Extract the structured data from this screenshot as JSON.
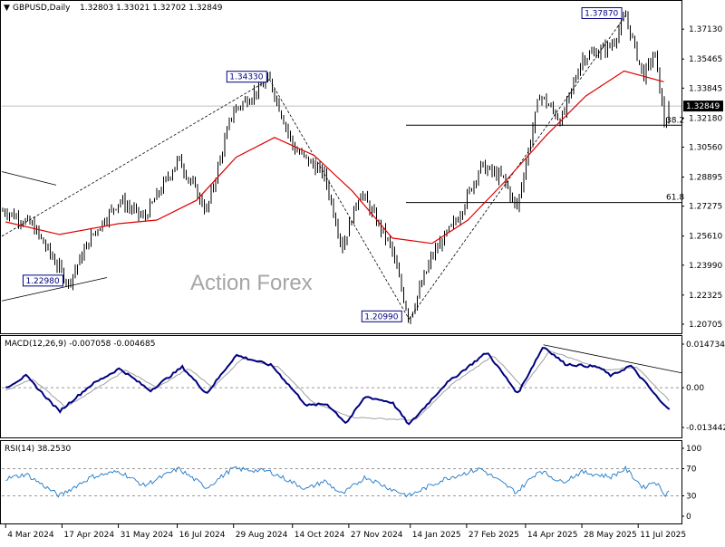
{
  "header": {
    "symbol": "GBPUSD,Daily",
    "ohlc": "1.32803 1.33021 1.32702 1.32849"
  },
  "watermark": "Action Forex",
  "colors": {
    "price": "#000000",
    "ma": "#e00000",
    "macd": "#00007f",
    "signal": "#a0a0a0",
    "rsi": "#1e78c8",
    "grid": "#c8c8c8"
  },
  "chart_data": [
    {
      "type": "ohlc",
      "title": "GBPUSD,Daily",
      "price_axis_ticks": [
        "1.37130",
        "1.35465",
        "1.33845",
        "1.32180",
        "1.30560",
        "1.28895",
        "1.27275",
        "1.25610",
        "1.23990",
        "1.22325",
        "1.20705"
      ],
      "last_price": "1.32849",
      "ylim": [
        1.203,
        1.386
      ],
      "x_labels": [
        "4 Mar 2024",
        "17 Apr 2024",
        "31 May 2024",
        "16 Jul 2024",
        "29 Aug 2024",
        "14 Oct 2024",
        "27 Nov 2024",
        "14 Jan 2025",
        "27 Feb 2025",
        "14 Apr 2025",
        "28 May 2025",
        "11 Jul 2025"
      ],
      "price_path": [
        {
          "date": "4 Mar 2024",
          "price": 1.27
        },
        {
          "date": "25 Mar 2024",
          "price": 1.262
        },
        {
          "date": "22 Apr 2024",
          "price": 1.2298
        },
        {
          "date": "10 May 2024",
          "price": 1.256
        },
        {
          "date": "1 Jun 2024",
          "price": 1.276
        },
        {
          "date": "20 Jun 2024",
          "price": 1.266
        },
        {
          "date": "17 Jul 2024",
          "price": 1.299
        },
        {
          "date": "8 Aug 2024",
          "price": 1.27
        },
        {
          "date": "28 Aug 2024",
          "price": 1.325
        },
        {
          "date": "26 Sep 2024",
          "price": 1.3433
        },
        {
          "date": "15 Oct 2024",
          "price": 1.305
        },
        {
          "date": "8 Nov 2024",
          "price": 1.29
        },
        {
          "date": "22 Nov 2024",
          "price": 1.25
        },
        {
          "date": "6 Dec 2024",
          "price": 1.281
        },
        {
          "date": "30 Dec 2024",
          "price": 1.25
        },
        {
          "date": "13 Jan 2025",
          "price": 1.2099
        },
        {
          "date": "31 Jan 2025",
          "price": 1.245
        },
        {
          "date": "20 Feb 2025",
          "price": 1.266
        },
        {
          "date": "10 Mar 2025",
          "price": 1.295
        },
        {
          "date": "28 Mar 2025",
          "price": 1.288
        },
        {
          "date": "7 Apr 2025",
          "price": 1.271
        },
        {
          "date": "25 Apr 2025",
          "price": 1.335
        },
        {
          "date": "12 May 2025",
          "price": 1.32
        },
        {
          "date": "28 May 2025",
          "price": 1.355
        },
        {
          "date": "20 Jun 2025",
          "price": 1.362
        },
        {
          "date": "1 Jul 2025",
          "price": 1.3787
        },
        {
          "date": "15 Jul 2025",
          "price": 1.345
        },
        {
          "date": "24 Jul 2025",
          "price": 1.358
        },
        {
          "date": "1 Aug 2025",
          "price": 1.317
        },
        {
          "date": "5 Aug 2025",
          "price": 1.3285
        }
      ],
      "moving_average": [
        {
          "date": "4 Mar 2024",
          "value": 1.264
        },
        {
          "date": "15 Apr 2024",
          "value": 1.257
        },
        {
          "date": "31 May 2024",
          "value": 1.263
        },
        {
          "date": "30 Jun 2024",
          "value": 1.265
        },
        {
          "date": "31 Jul 2024",
          "value": 1.276
        },
        {
          "date": "31 Aug 2024",
          "value": 1.3
        },
        {
          "date": "30 Sep 2024",
          "value": 1.311
        },
        {
          "date": "31 Oct 2024",
          "value": 1.301
        },
        {
          "date": "30 Nov 2024",
          "value": 1.281
        },
        {
          "date": "31 Dec 2024",
          "value": 1.255
        },
        {
          "date": "31 Jan 2025",
          "value": 1.252
        },
        {
          "date": "28 Feb 2025",
          "value": 1.265
        },
        {
          "date": "31 Mar 2025",
          "value": 1.288
        },
        {
          "date": "30 Apr 2025",
          "value": 1.312
        },
        {
          "date": "31 May 2025",
          "value": 1.334
        },
        {
          "date": "30 Jun 2025",
          "value": 1.348
        },
        {
          "date": "31 Jul 2025",
          "value": 1.342
        }
      ],
      "annotations": [
        {
          "text": "1.34330",
          "date": "26 Sep 2024",
          "price": 1.3433
        },
        {
          "text": "1.22980",
          "date": "22 Apr 2024",
          "price": 1.2298
        },
        {
          "text": "1.20990",
          "date": "13 Jan 2025",
          "price": 1.2099
        },
        {
          "text": "1.37870",
          "date": "1 Jul 2025",
          "price": 1.3787
        }
      ],
      "fib_levels": [
        {
          "label": "38.2",
          "price": 1.3178
        },
        {
          "label": "61.8",
          "price": 1.2748
        }
      ]
    },
    {
      "type": "line",
      "title": "MACD(12,26,9) -0.007058 -0.004685",
      "axis_ticks": [
        "0.014734",
        "0.00",
        "-0.013442"
      ],
      "series": [
        {
          "name": "MACD",
          "points": [
            {
              "date": "4 Mar 2024",
              "value": 0.0
            },
            {
              "date": "20 Mar 2024",
              "value": 0.004
            },
            {
              "date": "15 Apr 2024",
              "value": -0.008
            },
            {
              "date": "10 May 2024",
              "value": 0.001
            },
            {
              "date": "1 Jun 2024",
              "value": 0.0065
            },
            {
              "date": "25 Jun 2024",
              "value": -0.001
            },
            {
              "date": "20 Jul 2024",
              "value": 0.007
            },
            {
              "date": "8 Aug 2024",
              "value": -0.002
            },
            {
              "date": "31 Aug 2024",
              "value": 0.011
            },
            {
              "date": "28 Sep 2024",
              "value": 0.0075
            },
            {
              "date": "25 Oct 2024",
              "value": -0.006
            },
            {
              "date": "10 Nov 2024",
              "value": -0.0055
            },
            {
              "date": "25 Nov 2024",
              "value": -0.012
            },
            {
              "date": "10 Dec 2024",
              "value": -0.003
            },
            {
              "date": "31 Dec 2024",
              "value": -0.005
            },
            {
              "date": "13 Jan 2025",
              "value": -0.0125
            },
            {
              "date": "10 Feb 2025",
              "value": 0.001
            },
            {
              "date": "15 Mar 2025",
              "value": 0.012
            },
            {
              "date": "8 Apr 2025",
              "value": -0.002
            },
            {
              "date": "28 Apr 2025",
              "value": 0.014
            },
            {
              "date": "15 May 2025",
              "value": 0.008
            },
            {
              "date": "10 Jun 2025",
              "value": 0.007
            },
            {
              "date": "20 Jun 2025",
              "value": 0.004
            },
            {
              "date": "5 Jul 2025",
              "value": 0.0075
            },
            {
              "date": "18 Jul 2025",
              "value": 0.001
            },
            {
              "date": "31 Jul 2025",
              "value": -0.006
            },
            {
              "date": "5 Aug 2025",
              "value": -0.007
            }
          ]
        },
        {
          "name": "Signal",
          "points": [
            {
              "date": "4 Mar 2024",
              "value": -0.001
            },
            {
              "date": "25 Mar 2024",
              "value": 0.003
            },
            {
              "date": "20 Apr 2024",
              "value": -0.0065
            },
            {
              "date": "15 May 2024",
              "value": 0.0
            },
            {
              "date": "6 Jun 2024",
              "value": 0.006
            },
            {
              "date": "30 Jun 2024",
              "value": 0.0
            },
            {
              "date": "25 Jul 2024",
              "value": 0.0065
            },
            {
              "date": "13 Aug 2024",
              "value": 0.0
            },
            {
              "date": "5 Sep 2024",
              "value": 0.01
            },
            {
              "date": "3 Oct 2024",
              "value": 0.007
            },
            {
              "date": "30 Oct 2024",
              "value": -0.005
            },
            {
              "date": "30 Nov 2024",
              "value": -0.01
            },
            {
              "date": "18 Jan 2025",
              "value": -0.011
            },
            {
              "date": "15 Feb 2025",
              "value": 0.001
            },
            {
              "date": "20 Mar 2025",
              "value": 0.011
            },
            {
              "date": "12 Apr 2025",
              "value": 0.0
            },
            {
              "date": "3 May 2025",
              "value": 0.0125
            },
            {
              "date": "15 Jun 2025",
              "value": 0.006
            },
            {
              "date": "10 Jul 2025",
              "value": 0.007
            },
            {
              "date": "5 Aug 2025",
              "value": -0.0047
            }
          ]
        }
      ],
      "trendline": [
        {
          "date": "28 Apr 2025",
          "value": 0.0145
        },
        {
          "date": "5 Aug 2025",
          "value": 0.005
        }
      ]
    },
    {
      "type": "line",
      "title": "RSI(14) 38.2530",
      "axis_ticks": [
        "100",
        "70",
        "30",
        "0"
      ],
      "ylim": [
        0,
        100
      ],
      "levels": [
        70,
        30
      ],
      "points": [
        {
          "date": "4 Mar 2024",
          "value": 55
        },
        {
          "date": "20 Mar 2024",
          "value": 62
        },
        {
          "date": "15 Apr 2024",
          "value": 30
        },
        {
          "date": "10 May 2024",
          "value": 58
        },
        {
          "date": "1 Jun 2024",
          "value": 66
        },
        {
          "date": "20 Jun 2024",
          "value": 45
        },
        {
          "date": "17 Jul 2024",
          "value": 70
        },
        {
          "date": "8 Aug 2024",
          "value": 42
        },
        {
          "date": "28 Aug 2024",
          "value": 70
        },
        {
          "date": "26 Sep 2024",
          "value": 66
        },
        {
          "date": "25 Oct 2024",
          "value": 40
        },
        {
          "date": "8 Nov 2024",
          "value": 52
        },
        {
          "date": "22 Nov 2024",
          "value": 32
        },
        {
          "date": "10 Dec 2024",
          "value": 58
        },
        {
          "date": "30 Dec 2024",
          "value": 40
        },
        {
          "date": "13 Jan 2025",
          "value": 30
        },
        {
          "date": "10 Feb 2025",
          "value": 55
        },
        {
          "date": "10 Mar 2025",
          "value": 70
        },
        {
          "date": "7 Apr 2025",
          "value": 35
        },
        {
          "date": "25 Apr 2025",
          "value": 68
        },
        {
          "date": "12 May 2025",
          "value": 50
        },
        {
          "date": "28 May 2025",
          "value": 65
        },
        {
          "date": "20 Jun 2025",
          "value": 58
        },
        {
          "date": "1 Jul 2025",
          "value": 70
        },
        {
          "date": "15 Jul 2025",
          "value": 42
        },
        {
          "date": "24 Jul 2025",
          "value": 52
        },
        {
          "date": "1 Aug 2025",
          "value": 32
        },
        {
          "date": "5 Aug 2025",
          "value": 38
        }
      ]
    }
  ]
}
